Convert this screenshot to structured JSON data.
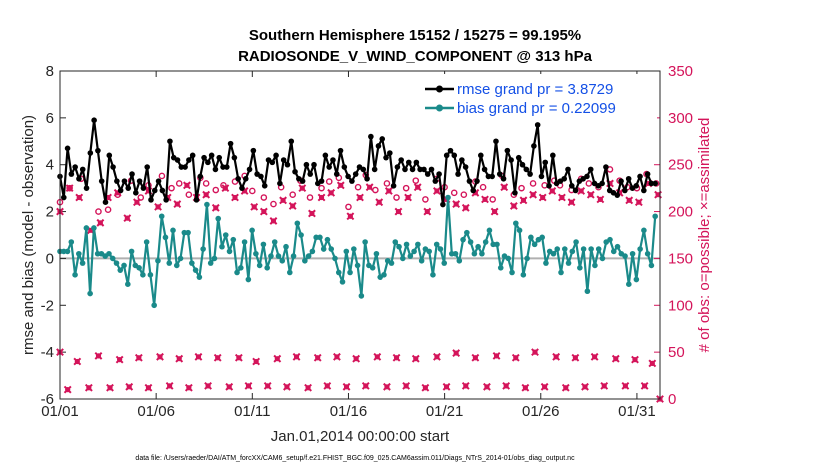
{
  "chart_data": {
    "type": "line",
    "title": "Southern Hemisphere 15152 / 15275 = 99.195%",
    "subtitle": "RADIOSONDE_V_WIND_COMPONENT @ 313 hPa",
    "xlabel": "Jan.01,2014 00:00:00 start",
    "ylabel": "rmse and bias (model - observation)",
    "ylabel_right": "# of obs: o=possible; ×=assimilated",
    "footnote": "data file: /Users/raeder/DAI/ATM_forcXX/CAM6_setup/f.e21.FHIST_BGC.f09_025.CAM6assim.011/Diags_NTrS_2014-01/obs_diag_output.nc",
    "xlim": [
      0,
      31.2
    ],
    "ylim": [
      -6,
      8
    ],
    "ylim_right": [
      0,
      350
    ],
    "x_tick_values": [
      0,
      5,
      10,
      15,
      20,
      25,
      30
    ],
    "x_tick_labels": [
      "01/01",
      "01/06",
      "01/11",
      "01/16",
      "01/21",
      "01/26",
      "01/31"
    ],
    "y_ticks": [
      -6,
      -4,
      -2,
      0,
      2,
      4,
      6,
      8
    ],
    "y_right_ticks": [
      0,
      50,
      100,
      150,
      200,
      250,
      300,
      350
    ],
    "legend_position": "top-right",
    "colors": {
      "rmse": "#000000",
      "bias": "#1a8a8a",
      "obs": "#d4145a",
      "zero": "#b0b0b0",
      "legend_text": "#1450e6"
    },
    "series": [
      {
        "name": "rmse grand pr = 3.8729",
        "values": [
          3.5,
          2.6,
          4.7,
          3.6,
          3.9,
          3.4,
          3.8,
          3.0,
          4.5,
          5.9,
          4.6,
          3.3,
          2.4,
          4.4,
          3.9,
          3.3,
          2.9,
          3.3,
          3.0,
          3.6,
          2.8,
          3.3,
          3.0,
          3.9,
          2.5,
          2.9,
          3.3,
          2.9,
          2.5,
          5.0,
          4.3,
          4.2,
          3.9,
          3.9,
          4.2,
          4.4,
          2.5,
          3.5,
          4.3,
          4.1,
          4.4,
          3.8,
          4.3,
          3.9,
          3.9,
          4.9,
          4.3,
          3.4,
          3.0,
          3.4,
          3.8,
          4.6,
          3.6,
          3.5,
          3.1,
          4.2,
          4.1,
          4.4,
          3.2,
          4.2,
          4.0,
          5.0,
          3.7,
          3.4,
          3.3,
          4.0,
          3.6,
          4.0,
          3.2,
          3.3,
          4.4,
          3.9,
          4.2,
          3.6,
          4.6,
          3.9,
          3.5,
          3.3,
          3.6,
          3.9,
          3.8,
          3.4,
          5.2,
          3.8,
          4.8,
          5.1,
          4.3,
          4.5,
          3.1,
          3.9,
          4.2,
          3.8,
          4.1,
          3.8,
          4.1,
          3.8,
          3.8,
          3.6,
          3.8,
          3.3,
          3.6,
          2.3,
          4.4,
          4.6,
          4.4,
          3.6,
          4.2,
          3.9,
          3.3,
          2.9,
          3.3,
          4.4,
          3.8,
          3.5,
          3.5,
          5.0,
          3.6,
          3.4,
          4.6,
          4.2,
          2.8,
          4.3,
          4.0,
          3.8,
          3.6,
          4.8,
          5.7,
          3.5,
          4.1,
          3.1,
          4.4,
          3.2,
          3.3,
          3.4,
          3.8,
          3.1,
          2.9,
          3.3,
          3.4,
          3.5,
          3.8,
          3.2,
          3.1,
          3.2,
          3.9,
          2.9,
          2.8,
          2.7,
          3.3,
          2.9,
          3.4,
          3.0,
          3.1,
          3.5,
          2.9,
          3.6,
          3.2,
          3.2
        ]
      },
      {
        "name": "bias grand pr = 0.22099",
        "values": [
          0.3,
          0.3,
          0.3,
          0.7,
          -0.7,
          0.2,
          -0.2,
          1.3,
          -1.5,
          1.3,
          0.2,
          0.2,
          0.1,
          0.2,
          0.0,
          -0.2,
          -0.5,
          -0.3,
          -1.1,
          0.3,
          -0.3,
          -0.4,
          -0.7,
          0.7,
          -0.7,
          -2.0,
          -0.1,
          1.8,
          0.9,
          -0.2,
          1.2,
          -0.3,
          0.0,
          1.1,
          1.1,
          -0.2,
          -0.5,
          -0.8,
          0.4,
          2.3,
          -0.2,
          0.0,
          1.7,
          0.5,
          1.0,
          0.3,
          0.8,
          -0.6,
          -0.4,
          0.7,
          -0.9,
          1.2,
          0.2,
          -0.3,
          0.6,
          -0.4,
          0.1,
          0.7,
          0.1,
          -0.1,
          0.5,
          -0.6,
          0.1,
          1.5,
          1.0,
          -0.1,
          0.1,
          0.3,
          0.9,
          0.9,
          0.4,
          0.8,
          0.4,
          0.0,
          -0.6,
          -1.0,
          0.3,
          -0.6,
          0.4,
          -0.3,
          -1.6,
          0.7,
          -0.3,
          -0.4,
          0.2,
          -0.8,
          -0.7,
          -0.1,
          -0.2,
          0.7,
          0.5,
          0.0,
          0.6,
          0.1,
          0.3,
          0.6,
          -0.1,
          0.4,
          0.3,
          -0.7,
          0.6,
          0.4,
          -0.2,
          2.6,
          0.2,
          0.2,
          -0.1,
          0.8,
          1.1,
          0.7,
          0.2,
          0.5,
          0.2,
          0.7,
          1.2,
          0.6,
          0.6,
          -0.4,
          0.1,
          0.0,
          -0.6,
          1.5,
          1.2,
          -0.7,
          0.0,
          0.9,
          0.6,
          0.8,
          0.9,
          -0.2,
          0.3,
          0.2,
          0.4,
          -0.6,
          0.4,
          -0.2,
          0.3,
          0.7,
          -0.4,
          0.4,
          -1.4,
          0.4,
          -0.3,
          0.4,
          0.0,
          0.7,
          0.8,
          0.3,
          0.5,
          0.2,
          0.1,
          -1.1,
          0.2,
          -0.9,
          0.4,
          1.2,
          0.2,
          -0.3,
          1.8
        ]
      }
    ],
    "obs_possible": [
      {
        "x": 0.0,
        "y": 210
      },
      {
        "x": 0.5,
        "y": 225
      },
      {
        "x": 1.1,
        "y": 235
      },
      {
        "x": 2.0,
        "y": 200
      },
      {
        "x": 2.5,
        "y": 202
      },
      {
        "x": 3.0,
        "y": 218
      },
      {
        "x": 3.7,
        "y": 233
      },
      {
        "x": 4.2,
        "y": 215
      },
      {
        "x": 4.6,
        "y": 228
      },
      {
        "x": 5.3,
        "y": 238
      },
      {
        "x": 5.8,
        "y": 225
      },
      {
        "x": 6.2,
        "y": 230
      },
      {
        "x": 6.7,
        "y": 218
      },
      {
        "x": 7.3,
        "y": 236
      },
      {
        "x": 7.6,
        "y": 230
      },
      {
        "x": 8.1,
        "y": 223
      },
      {
        "x": 8.5,
        "y": 228
      },
      {
        "x": 9.1,
        "y": 232
      },
      {
        "x": 9.6,
        "y": 238
      },
      {
        "x": 10.0,
        "y": 222
      },
      {
        "x": 10.6,
        "y": 215
      },
      {
        "x": 11.1,
        "y": 208
      },
      {
        "x": 11.5,
        "y": 226
      },
      {
        "x": 12.1,
        "y": 218
      },
      {
        "x": 12.5,
        "y": 233
      },
      {
        "x": 13.0,
        "y": 215
      },
      {
        "x": 13.6,
        "y": 225
      },
      {
        "x": 14.0,
        "y": 232
      },
      {
        "x": 14.5,
        "y": 236
      },
      {
        "x": 15.0,
        "y": 205
      },
      {
        "x": 15.5,
        "y": 226
      },
      {
        "x": 15.9,
        "y": 239
      },
      {
        "x": 16.4,
        "y": 223
      },
      {
        "x": 17.0,
        "y": 230
      },
      {
        "x": 17.5,
        "y": 215
      },
      {
        "x": 18.0,
        "y": 225
      },
      {
        "x": 18.5,
        "y": 233
      },
      {
        "x": 19.0,
        "y": 213
      },
      {
        "x": 19.6,
        "y": 235
      },
      {
        "x": 20.0,
        "y": 226
      },
      {
        "x": 20.5,
        "y": 220
      },
      {
        "x": 21.0,
        "y": 218
      },
      {
        "x": 21.6,
        "y": 232
      },
      {
        "x": 22.0,
        "y": 226
      },
      {
        "x": 22.5,
        "y": 213
      },
      {
        "x": 23.0,
        "y": 238
      },
      {
        "x": 23.6,
        "y": 218
      },
      {
        "x": 24.0,
        "y": 225
      },
      {
        "x": 24.6,
        "y": 230
      },
      {
        "x": 25.2,
        "y": 228
      },
      {
        "x": 25.7,
        "y": 233
      },
      {
        "x": 26.0,
        "y": 228
      },
      {
        "x": 26.6,
        "y": 223
      },
      {
        "x": 27.1,
        "y": 235
      },
      {
        "x": 27.5,
        "y": 230
      },
      {
        "x": 28.0,
        "y": 226
      },
      {
        "x": 28.6,
        "y": 245
      },
      {
        "x": 29.1,
        "y": 233
      },
      {
        "x": 29.5,
        "y": 226
      },
      {
        "x": 30.0,
        "y": 225
      },
      {
        "x": 30.5,
        "y": 240
      },
      {
        "x": 31.0,
        "y": 230
      }
    ],
    "obs_assimilated": [
      {
        "x": 0.0,
        "y": 50
      },
      {
        "x": 0.4,
        "y": 10
      },
      {
        "x": 0.9,
        "y": 40
      },
      {
        "x": 1.5,
        "y": 12
      },
      {
        "x": 2.0,
        "y": 46
      },
      {
        "x": 2.6,
        "y": 12
      },
      {
        "x": 3.1,
        "y": 42
      },
      {
        "x": 3.6,
        "y": 13
      },
      {
        "x": 4.1,
        "y": 44
      },
      {
        "x": 4.6,
        "y": 12
      },
      {
        "x": 5.2,
        "y": 45
      },
      {
        "x": 5.7,
        "y": 14
      },
      {
        "x": 6.2,
        "y": 43
      },
      {
        "x": 6.7,
        "y": 12
      },
      {
        "x": 7.2,
        "y": 45
      },
      {
        "x": 7.7,
        "y": 14
      },
      {
        "x": 8.2,
        "y": 44
      },
      {
        "x": 8.8,
        "y": 13
      },
      {
        "x": 9.3,
        "y": 44
      },
      {
        "x": 9.8,
        "y": 14
      },
      {
        "x": 10.2,
        "y": 40
      },
      {
        "x": 10.8,
        "y": 14
      },
      {
        "x": 11.3,
        "y": 43
      },
      {
        "x": 11.8,
        "y": 13
      },
      {
        "x": 12.3,
        "y": 45
      },
      {
        "x": 12.9,
        "y": 12
      },
      {
        "x": 13.4,
        "y": 44
      },
      {
        "x": 13.9,
        "y": 14
      },
      {
        "x": 14.4,
        "y": 45
      },
      {
        "x": 14.9,
        "y": 13
      },
      {
        "x": 15.4,
        "y": 43
      },
      {
        "x": 15.9,
        "y": 14
      },
      {
        "x": 16.5,
        "y": 45
      },
      {
        "x": 17.0,
        "y": 13
      },
      {
        "x": 17.5,
        "y": 44
      },
      {
        "x": 18.0,
        "y": 14
      },
      {
        "x": 18.5,
        "y": 43
      },
      {
        "x": 19.0,
        "y": 12
      },
      {
        "x": 19.6,
        "y": 45
      },
      {
        "x": 20.1,
        "y": 13
      },
      {
        "x": 20.6,
        "y": 49
      },
      {
        "x": 21.1,
        "y": 14
      },
      {
        "x": 21.6,
        "y": 44
      },
      {
        "x": 22.2,
        "y": 13
      },
      {
        "x": 22.7,
        "y": 46
      },
      {
        "x": 23.2,
        "y": 14
      },
      {
        "x": 23.7,
        "y": 44
      },
      {
        "x": 24.2,
        "y": 12
      },
      {
        "x": 24.7,
        "y": 50
      },
      {
        "x": 25.2,
        "y": 13
      },
      {
        "x": 25.8,
        "y": 45
      },
      {
        "x": 26.3,
        "y": 12
      },
      {
        "x": 26.8,
        "y": 44
      },
      {
        "x": 27.3,
        "y": 13
      },
      {
        "x": 27.8,
        "y": 45
      },
      {
        "x": 28.3,
        "y": 14
      },
      {
        "x": 28.9,
        "y": 43
      },
      {
        "x": 29.4,
        "y": 14
      },
      {
        "x": 29.9,
        "y": 42
      },
      {
        "x": 30.4,
        "y": 14
      },
      {
        "x": 30.8,
        "y": 38
      },
      {
        "x": 31.2,
        "y": 0
      }
    ],
    "obs_assimilated_upper": [
      {
        "x": 0.0,
        "y": 200
      },
      {
        "x": 0.5,
        "y": 225
      },
      {
        "x": 1.0,
        "y": 215
      },
      {
        "x": 1.6,
        "y": 180
      },
      {
        "x": 2.1,
        "y": 188
      },
      {
        "x": 2.5,
        "y": 215
      },
      {
        "x": 3.0,
        "y": 220
      },
      {
        "x": 3.5,
        "y": 193
      },
      {
        "x": 4.0,
        "y": 210
      },
      {
        "x": 4.6,
        "y": 222
      },
      {
        "x": 5.1,
        "y": 205
      },
      {
        "x": 5.6,
        "y": 215
      },
      {
        "x": 6.1,
        "y": 208
      },
      {
        "x": 6.6,
        "y": 228
      },
      {
        "x": 7.1,
        "y": 215
      },
      {
        "x": 7.6,
        "y": 218
      },
      {
        "x": 8.1,
        "y": 204
      },
      {
        "x": 8.6,
        "y": 225
      },
      {
        "x": 9.1,
        "y": 215
      },
      {
        "x": 9.6,
        "y": 222
      },
      {
        "x": 10.1,
        "y": 205
      },
      {
        "x": 10.6,
        "y": 200
      },
      {
        "x": 11.1,
        "y": 190
      },
      {
        "x": 11.6,
        "y": 212
      },
      {
        "x": 12.1,
        "y": 206
      },
      {
        "x": 12.6,
        "y": 225
      },
      {
        "x": 13.1,
        "y": 198
      },
      {
        "x": 13.6,
        "y": 215
      },
      {
        "x": 14.1,
        "y": 220
      },
      {
        "x": 14.6,
        "y": 228
      },
      {
        "x": 15.1,
        "y": 195
      },
      {
        "x": 15.6,
        "y": 215
      },
      {
        "x": 16.1,
        "y": 226
      },
      {
        "x": 16.6,
        "y": 210
      },
      {
        "x": 17.1,
        "y": 222
      },
      {
        "x": 17.6,
        "y": 200
      },
      {
        "x": 18.1,
        "y": 215
      },
      {
        "x": 18.6,
        "y": 226
      },
      {
        "x": 19.1,
        "y": 200
      },
      {
        "x": 19.6,
        "y": 222
      },
      {
        "x": 20.1,
        "y": 213
      },
      {
        "x": 20.6,
        "y": 208
      },
      {
        "x": 21.1,
        "y": 204
      },
      {
        "x": 21.6,
        "y": 220
      },
      {
        "x": 22.1,
        "y": 213
      },
      {
        "x": 22.6,
        "y": 200
      },
      {
        "x": 23.1,
        "y": 226
      },
      {
        "x": 23.6,
        "y": 206
      },
      {
        "x": 24.1,
        "y": 212
      },
      {
        "x": 24.6,
        "y": 218
      },
      {
        "x": 25.1,
        "y": 215
      },
      {
        "x": 25.6,
        "y": 222
      },
      {
        "x": 26.1,
        "y": 215
      },
      {
        "x": 26.6,
        "y": 210
      },
      {
        "x": 27.1,
        "y": 222
      },
      {
        "x": 27.6,
        "y": 218
      },
      {
        "x": 28.1,
        "y": 213
      },
      {
        "x": 28.6,
        "y": 230
      },
      {
        "x": 29.1,
        "y": 220
      },
      {
        "x": 29.6,
        "y": 212
      },
      {
        "x": 30.1,
        "y": 210
      },
      {
        "x": 30.6,
        "y": 230
      },
      {
        "x": 31.1,
        "y": 218
      }
    ]
  }
}
